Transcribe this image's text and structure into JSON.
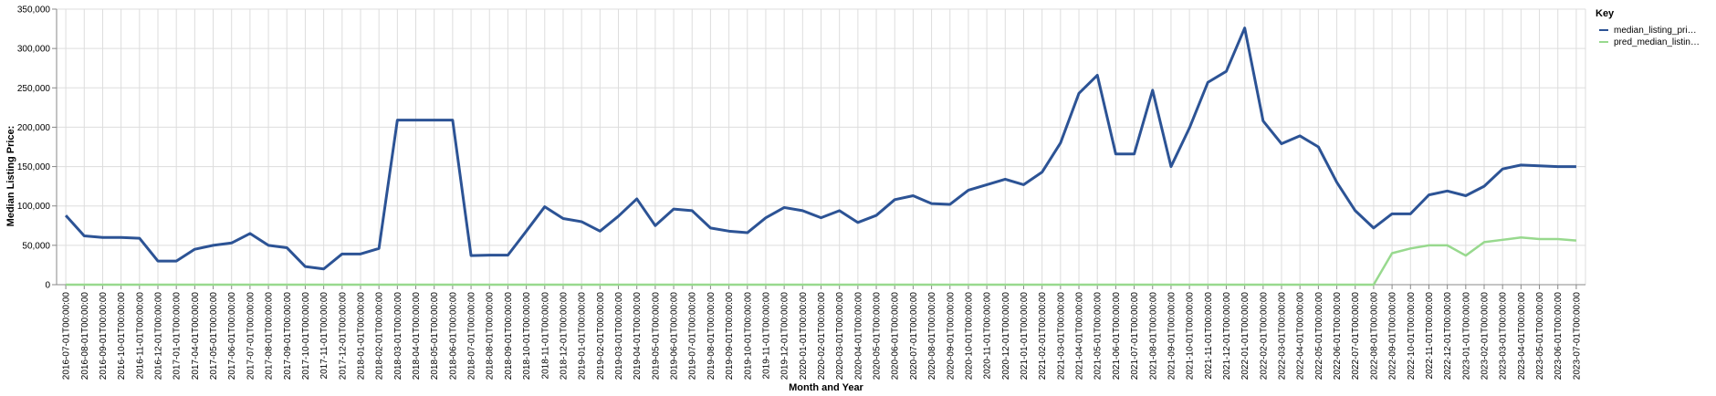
{
  "chart_data": {
    "type": "line",
    "xlabel": "Month and Year",
    "ylabel": "Median Listing Price:",
    "ylim": [
      0,
      350000
    ],
    "y_ticks": [
      "0",
      "50,000",
      "100,000",
      "150,000",
      "200,000",
      "250,000",
      "300,000",
      "350,000"
    ],
    "y_tick_values": [
      0,
      50000,
      100000,
      150000,
      200000,
      250000,
      300000,
      350000
    ],
    "grid": true,
    "legend": {
      "title": "Key",
      "placement": "top-right"
    },
    "x": [
      "2016-07-01T00:00:00",
      "2016-08-01T00:00:00",
      "2016-09-01T00:00:00",
      "2016-10-01T00:00:00",
      "2016-11-01T00:00:00",
      "2016-12-01T00:00:00",
      "2017-01-01T00:00:00",
      "2017-04-01T00:00:00",
      "2017-05-01T00:00:00",
      "2017-06-01T00:00:00",
      "2017-07-01T00:00:00",
      "2017-08-01T00:00:00",
      "2017-09-01T00:00:00",
      "2017-10-01T00:00:00",
      "2017-11-01T00:00:00",
      "2017-12-01T00:00:00",
      "2018-01-01T00:00:00",
      "2018-02-01T00:00:00",
      "2018-03-01T00:00:00",
      "2018-04-01T00:00:00",
      "2018-05-01T00:00:00",
      "2018-06-01T00:00:00",
      "2018-07-01T00:00:00",
      "2018-08-01T00:00:00",
      "2018-09-01T00:00:00",
      "2018-10-01T00:00:00",
      "2018-11-01T00:00:00",
      "2018-12-01T00:00:00",
      "2019-01-01T00:00:00",
      "2019-02-01T00:00:00",
      "2019-03-01T00:00:00",
      "2019-04-01T00:00:00",
      "2019-05-01T00:00:00",
      "2019-06-01T00:00:00",
      "2019-07-01T00:00:00",
      "2019-08-01T00:00:00",
      "2019-09-01T00:00:00",
      "2019-10-01T00:00:00",
      "2019-11-01T00:00:00",
      "2019-12-01T00:00:00",
      "2020-01-01T00:00:00",
      "2020-02-01T00:00:00",
      "2020-03-01T00:00:00",
      "2020-04-01T00:00:00",
      "2020-05-01T00:00:00",
      "2020-06-01T00:00:00",
      "2020-07-01T00:00:00",
      "2020-08-01T00:00:00",
      "2020-09-01T00:00:00",
      "2020-10-01T00:00:00",
      "2020-11-01T00:00:00",
      "2020-12-01T00:00:00",
      "2021-01-01T00:00:00",
      "2021-02-01T00:00:00",
      "2021-03-01T00:00:00",
      "2021-04-01T00:00:00",
      "2021-05-01T00:00:00",
      "2021-06-01T00:00:00",
      "2021-07-01T00:00:00",
      "2021-08-01T00:00:00",
      "2021-09-01T00:00:00",
      "2021-10-01T00:00:00",
      "2021-11-01T00:00:00",
      "2021-12-01T00:00:00",
      "2022-01-01T00:00:00",
      "2022-02-01T00:00:00",
      "2022-03-01T00:00:00",
      "2022-04-01T00:00:00",
      "2022-05-01T00:00:00",
      "2022-06-01T00:00:00",
      "2022-07-01T00:00:00",
      "2022-08-01T00:00:00",
      "2022-09-01T00:00:00",
      "2022-10-01T00:00:00",
      "2022-11-01T00:00:00",
      "2022-12-01T00:00:00",
      "2023-01-01T00:00:00",
      "2023-02-01T00:00:00",
      "2023-03-01T00:00:00",
      "2023-04-01T00:00:00",
      "2023-05-01T00:00:00",
      "2023-06-01T00:00:00",
      "2023-07-01T00:00:00"
    ],
    "series": [
      {
        "name": "median_listing_pri…",
        "color": "#2c5395",
        "values": [
          88000,
          62000,
          60000,
          60000,
          59000,
          30000,
          30000,
          45000,
          50000,
          53000,
          65000,
          50000,
          47000,
          23000,
          20000,
          39000,
          39000,
          46000,
          209000,
          209000,
          209000,
          209000,
          37000,
          37500,
          37500,
          68000,
          99000,
          84000,
          80000,
          68000,
          87000,
          109000,
          75000,
          96000,
          94000,
          72000,
          68000,
          66000,
          85000,
          98000,
          94000,
          85000,
          94000,
          79000,
          88000,
          108000,
          113000,
          103000,
          102000,
          120000,
          127000,
          134000,
          127000,
          143000,
          180000,
          243000,
          266000,
          166000,
          166000,
          247000,
          150000,
          199000,
          257000,
          271000,
          326000,
          208000,
          179000,
          189000,
          175000,
          130000,
          94000,
          72000,
          90000,
          90000,
          114000,
          119000,
          113000,
          125000,
          147000,
          152000,
          151000,
          150000,
          150000
        ]
      },
      {
        "name": "pred_median_listin…",
        "color": "#98d98e",
        "values": [
          0,
          0,
          0,
          0,
          0,
          0,
          0,
          0,
          0,
          0,
          0,
          0,
          0,
          0,
          0,
          0,
          0,
          0,
          0,
          0,
          0,
          0,
          0,
          0,
          0,
          0,
          0,
          0,
          0,
          0,
          0,
          0,
          0,
          0,
          0,
          0,
          0,
          0,
          0,
          0,
          0,
          0,
          0,
          0,
          0,
          0,
          0,
          0,
          0,
          0,
          0,
          0,
          0,
          0,
          0,
          0,
          0,
          0,
          0,
          0,
          0,
          0,
          0,
          0,
          0,
          0,
          0,
          0,
          0,
          0,
          0,
          0,
          40000,
          46000,
          50000,
          50000,
          37000,
          54000,
          57000,
          60000,
          58000,
          58000,
          56000
        ]
      }
    ]
  }
}
